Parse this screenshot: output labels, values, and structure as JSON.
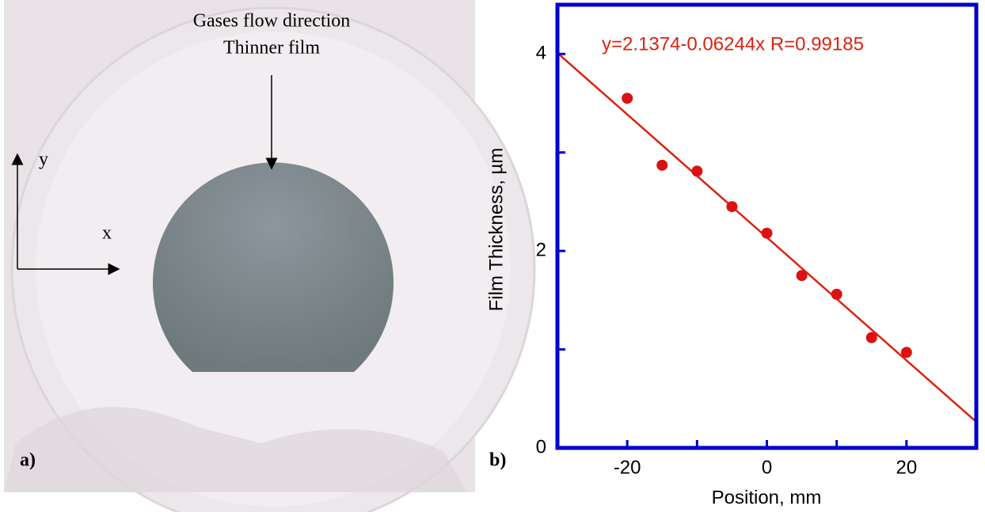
{
  "photo": {
    "annotation_lines": [
      "Gases flow direction",
      "Thinner film"
    ],
    "axis_y": "y",
    "axis_x": "x",
    "panel_label": "a)"
  },
  "chart_data": {
    "type": "scatter",
    "panel_label": "b)",
    "x_label": "Position, mm",
    "y_label": "Film Thickness, µm",
    "x": [
      -20,
      -15,
      -10,
      -5,
      0,
      5,
      10,
      15,
      20
    ],
    "values": [
      3.55,
      2.87,
      2.81,
      2.45,
      2.18,
      1.75,
      1.56,
      1.12,
      0.97
    ],
    "color": "#dd1111",
    "fit": {
      "intercept": 2.1374,
      "slope": -0.06244,
      "label": "y=2.1374-0.06244x  R=0.99185",
      "color": "#dd2211"
    },
    "xlim": [
      -30,
      30
    ],
    "xticks": [
      -20,
      0,
      20
    ],
    "xminor_ticks": [
      -30,
      -10,
      10,
      30
    ],
    "ylim": [
      0,
      4.5
    ],
    "yticks": [
      0,
      2,
      4
    ],
    "yminor_ticks": [
      1,
      3
    ],
    "frame_color": "#0000cc"
  }
}
